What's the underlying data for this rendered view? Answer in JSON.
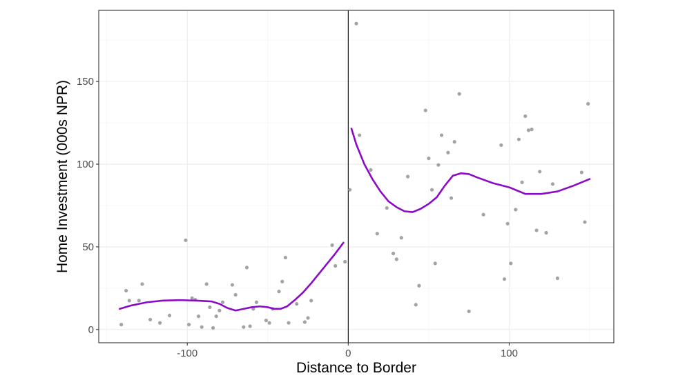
{
  "chart_data": {
    "type": "scatter",
    "xlabel": "Distance to Border",
    "ylabel": "Home Investment (000s NPR)",
    "xlim": [
      -155,
      165
    ],
    "ylim": [
      -8,
      193
    ],
    "x_ticks": [
      -100,
      0,
      100
    ],
    "x_tick_labels": [
      "-100",
      "0",
      "100"
    ],
    "y_ticks": [
      0,
      50,
      100,
      150
    ],
    "y_tick_labels": [
      "0",
      "50",
      "100",
      "150"
    ],
    "x_minor_ticks": [
      -150,
      -50,
      50,
      150
    ],
    "y_minor_ticks": [
      25,
      75,
      125,
      175
    ],
    "grid": true,
    "cutoff_line_x": 0,
    "colors": {
      "points": "#a3a3a3",
      "fit": "#8b0ac8",
      "cutoff": "#000000",
      "panel_border": "#333333"
    },
    "points": [
      [
        -141,
        3
      ],
      [
        -138,
        23.5
      ],
      [
        -136,
        17.5
      ],
      [
        -130,
        17.5
      ],
      [
        -128,
        27.5
      ],
      [
        -123,
        6
      ],
      [
        -117,
        4
      ],
      [
        -111,
        8.5
      ],
      [
        -101,
        54
      ],
      [
        -99,
        3
      ],
      [
        -97,
        19
      ],
      [
        -95,
        18
      ],
      [
        -93,
        8
      ],
      [
        -91,
        1.5
      ],
      [
        -88,
        27.5
      ],
      [
        -86,
        13.5
      ],
      [
        -84,
        1
      ],
      [
        -82,
        8
      ],
      [
        -80,
        11.5
      ],
      [
        -78,
        16.5
      ],
      [
        -72,
        27
      ],
      [
        -70,
        21
      ],
      [
        -65,
        1.5
      ],
      [
        -63,
        37.5
      ],
      [
        -61,
        2
      ],
      [
        -59,
        12.5
      ],
      [
        -57,
        16.5
      ],
      [
        -51,
        5.5
      ],
      [
        -49,
        4
      ],
      [
        -47,
        12.5
      ],
      [
        -43,
        23
      ],
      [
        -41,
        29
      ],
      [
        -39,
        43.5
      ],
      [
        -37,
        4
      ],
      [
        -32,
        15.5
      ],
      [
        -27,
        4.5
      ],
      [
        -25,
        7
      ],
      [
        -23,
        17.5
      ],
      [
        -10,
        51
      ],
      [
        -8,
        38.5
      ],
      [
        -2,
        41
      ],
      [
        1,
        84.5
      ],
      [
        5,
        185
      ],
      [
        7,
        117.5
      ],
      [
        14,
        96.5
      ],
      [
        18,
        58
      ],
      [
        24,
        73.5
      ],
      [
        28,
        46
      ],
      [
        30,
        42.5
      ],
      [
        33,
        55.5
      ],
      [
        37,
        92.5
      ],
      [
        42,
        15
      ],
      [
        44,
        26.5
      ],
      [
        48,
        132.5
      ],
      [
        50,
        103.5
      ],
      [
        52,
        84.5
      ],
      [
        54,
        40
      ],
      [
        56,
        99.5
      ],
      [
        58,
        117.5
      ],
      [
        62,
        107
      ],
      [
        64,
        79.5
      ],
      [
        66,
        113.5
      ],
      [
        69,
        142.5
      ],
      [
        75,
        11
      ],
      [
        84,
        69.5
      ],
      [
        95,
        111.5
      ],
      [
        97,
        30.5
      ],
      [
        99,
        64
      ],
      [
        101,
        40
      ],
      [
        104,
        72.5
      ],
      [
        106,
        115
      ],
      [
        108,
        89
      ],
      [
        110,
        129
      ],
      [
        112,
        120.5
      ],
      [
        114,
        121
      ],
      [
        117,
        60
      ],
      [
        119,
        95.5
      ],
      [
        123,
        58.5
      ],
      [
        127,
        88
      ],
      [
        130,
        31
      ],
      [
        145,
        95
      ],
      [
        147,
        65
      ],
      [
        149,
        136.5
      ]
    ],
    "series": [
      {
        "values": [
          [
            -142,
            12.5
          ],
          [
            -135,
            14.5
          ],
          [
            -125,
            16.5
          ],
          [
            -115,
            17.5
          ],
          [
            -105,
            17.8
          ],
          [
            -95,
            17.5
          ],
          [
            -85,
            17
          ],
          [
            -80,
            15.5
          ],
          [
            -75,
            13
          ],
          [
            -70,
            11.5
          ],
          [
            -65,
            12.5
          ],
          [
            -60,
            13.5
          ],
          [
            -55,
            14
          ],
          [
            -50,
            13.5
          ],
          [
            -46,
            12.5
          ],
          [
            -42,
            12.5
          ],
          [
            -38,
            14
          ],
          [
            -33,
            18
          ],
          [
            -28,
            22.5
          ],
          [
            -23,
            28
          ],
          [
            -18,
            34
          ],
          [
            -13,
            40
          ],
          [
            -8,
            46
          ],
          [
            -3,
            52.5
          ]
        ]
      },
      {
        "values": [
          [
            2,
            121.5
          ],
          [
            5,
            112
          ],
          [
            10,
            100
          ],
          [
            15,
            91
          ],
          [
            20,
            83.5
          ],
          [
            25,
            77.5
          ],
          [
            30,
            74
          ],
          [
            35,
            71.5
          ],
          [
            40,
            71
          ],
          [
            45,
            73
          ],
          [
            50,
            76
          ],
          [
            55,
            80
          ],
          [
            60,
            87
          ],
          [
            65,
            93
          ],
          [
            70,
            94.5
          ],
          [
            75,
            94
          ],
          [
            80,
            92
          ],
          [
            90,
            88.5
          ],
          [
            100,
            86
          ],
          [
            105,
            84
          ],
          [
            110,
            82
          ],
          [
            120,
            82
          ],
          [
            130,
            83.5
          ],
          [
            140,
            87
          ],
          [
            150,
            91
          ]
        ]
      }
    ]
  }
}
